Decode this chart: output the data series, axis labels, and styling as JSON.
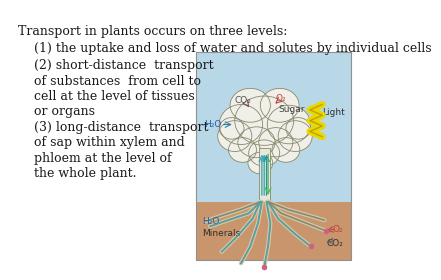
{
  "background_color": "#ffffff",
  "title_text": "Transport in plants occurs on three levels:",
  "line1": "    (1) the uptake and loss of water and solutes by individual cells",
  "line2": "    (2) short-distance  transport",
  "line3": "    of substances  from cell to",
  "line4": "    cell at the level of tissues",
  "line5": "    or organs",
  "line6": "    (3) long-distance  transport",
  "line7": "    of sap within xylem and",
  "line8": "    phloem at the level of",
  "line9": "    the whole plant.",
  "sky_color": "#b8d8e8",
  "ground_color": "#c8956c",
  "font_size": 9.0,
  "text_color": "#1a1a1a",
  "label_co2_top": "CO₂",
  "label_o2_top": "O₂",
  "label_light": "Light",
  "label_h2o_top": "H₂O",
  "label_sugar": "Sugar",
  "label_h2o_bot": "H₂O",
  "label_minerals": "Minerals",
  "label_o2_bot": "O₂",
  "label_co2_bot": "CO₂",
  "crown_color": "#f0f0e8",
  "crown_outline": "#888870",
  "trunk_color": "#e8e8d8",
  "xylem_color": "#40a8b8",
  "phloem_color": "#50b860",
  "root_color": "#d0c8a8",
  "arrow_h2o_color": "#3080b0",
  "arrow_co2_color": "#804040",
  "arrow_o2_color": "#c04040",
  "zigzag_color": "#e8d800",
  "zigzag_outline": "#c0a000"
}
